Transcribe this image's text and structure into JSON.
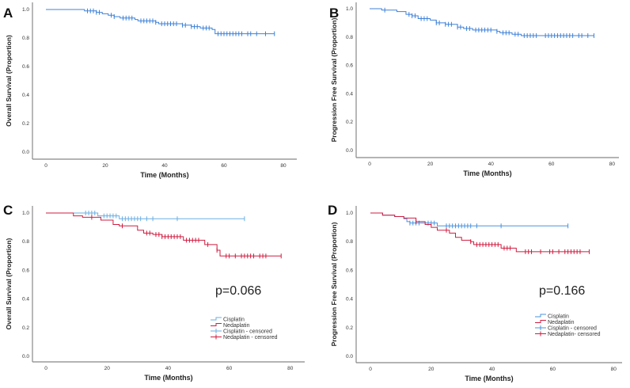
{
  "chart_data": [
    {
      "type": "line",
      "panel_label": "A",
      "xlabel": "Time (Months)",
      "ylabel": "Overall Survival (Proportion)",
      "xlim": [
        0,
        80
      ],
      "ylim": [
        0,
        1
      ],
      "xticks": [
        "0",
        "20",
        "40",
        "60",
        "80"
      ],
      "yticks": [
        "0.0",
        "0.2",
        "0.4",
        "0.6",
        "0.8",
        "1.0"
      ],
      "grid": false,
      "series": [
        {
          "color": "#3f82d8",
          "steps": [
            [
              0,
              1.0
            ],
            [
              13,
              0.99
            ],
            [
              17,
              0.98
            ],
            [
              19,
              0.97
            ],
            [
              21,
              0.96
            ],
            [
              23,
              0.95
            ],
            [
              25,
              0.94
            ],
            [
              30,
              0.93
            ],
            [
              31,
              0.92
            ],
            [
              37,
              0.91
            ],
            [
              38,
              0.9
            ],
            [
              46,
              0.89
            ],
            [
              49,
              0.88
            ],
            [
              52,
              0.87
            ],
            [
              56,
              0.86
            ],
            [
              57,
              0.83
            ],
            [
              77,
              0.83
            ]
          ],
          "censored": [
            14,
            15,
            16,
            17,
            18,
            22,
            23,
            26,
            27,
            28,
            29,
            32,
            33,
            34,
            35,
            36,
            37,
            39,
            40,
            41,
            42,
            43,
            44,
            46,
            47,
            49,
            50,
            51,
            53,
            54,
            55,
            58,
            59,
            60,
            61,
            62,
            63,
            64,
            65,
            66,
            68,
            69,
            71,
            74,
            77
          ]
        }
      ]
    },
    {
      "type": "line",
      "panel_label": "B",
      "xlabel": "Time (Months)",
      "ylabel": "Progression Free Survival (Proportion)",
      "xlim": [
        0,
        80
      ],
      "ylim": [
        0,
        1
      ],
      "xticks": [
        "0",
        "20",
        "40",
        "60",
        "80"
      ],
      "yticks": [
        "0.0",
        "0.2",
        "0.4",
        "0.6",
        "0.8",
        "1.0"
      ],
      "grid": false,
      "series": [
        {
          "color": "#3f82d8",
          "steps": [
            [
              0,
              1.0
            ],
            [
              4,
              0.99
            ],
            [
              9,
              0.98
            ],
            [
              12,
              0.96
            ],
            [
              14,
              0.95
            ],
            [
              16,
              0.93
            ],
            [
              20,
              0.92
            ],
            [
              22,
              0.9
            ],
            [
              25,
              0.89
            ],
            [
              29,
              0.87
            ],
            [
              31,
              0.86
            ],
            [
              34,
              0.85
            ],
            [
              42,
              0.84
            ],
            [
              43,
              0.83
            ],
            [
              47,
              0.82
            ],
            [
              50,
              0.81
            ],
            [
              74,
              0.81
            ]
          ],
          "censored": [
            5,
            13,
            14,
            15,
            17,
            18,
            19,
            22,
            23,
            25,
            26,
            27,
            29,
            30,
            32,
            33,
            35,
            36,
            37,
            38,
            39,
            40,
            42,
            44,
            45,
            46,
            48,
            49,
            51,
            52,
            53,
            54,
            55,
            58,
            59,
            60,
            61,
            62,
            63,
            64,
            65,
            66,
            67,
            69,
            70,
            72,
            74
          ]
        }
      ]
    },
    {
      "type": "line",
      "panel_label": "C",
      "xlabel": "Time (Months)",
      "ylabel": "Overall Survival (Proportion)",
      "xlim": [
        0,
        80
      ],
      "ylim": [
        0,
        1
      ],
      "xticks": [
        "0",
        "20",
        "40",
        "60",
        "80"
      ],
      "yticks": [
        "0.0",
        "0.2",
        "0.4",
        "0.6",
        "0.8",
        "1.0"
      ],
      "grid": false,
      "annotation": "p=0.066",
      "legend_position": "bottom-right",
      "legend": [
        "Cisplatin",
        "Nedaplatin",
        "Cisplatin - censored",
        "Nedaplatin - censored"
      ],
      "series": [
        {
          "name": "Cisplatin",
          "color": "#6aaee3",
          "steps": [
            [
              0,
              1.0
            ],
            [
              17,
              0.98
            ],
            [
              24,
              0.96
            ],
            [
              65,
              0.96
            ]
          ],
          "censored": [
            13,
            14,
            15,
            16,
            19,
            20,
            21,
            22,
            23,
            25,
            26,
            27,
            28,
            29,
            30,
            31,
            33,
            35,
            43,
            65
          ]
        },
        {
          "name": "Nedaplatin",
          "color": "#cf1d40",
          "steps": [
            [
              0,
              1.0
            ],
            [
              9,
              0.98
            ],
            [
              12,
              0.97
            ],
            [
              18,
              0.95
            ],
            [
              22,
              0.92
            ],
            [
              24,
              0.91
            ],
            [
              30,
              0.88
            ],
            [
              32,
              0.86
            ],
            [
              35,
              0.85
            ],
            [
              38,
              0.835
            ],
            [
              45,
              0.81
            ],
            [
              52,
              0.78
            ],
            [
              56,
              0.74
            ],
            [
              57,
              0.7
            ],
            [
              77,
              0.7
            ]
          ],
          "censored": [
            15,
            25,
            33,
            34,
            36,
            37,
            38,
            39,
            40,
            41,
            42,
            43,
            44,
            46,
            47,
            48,
            49,
            50,
            53,
            56,
            59,
            60,
            62,
            64,
            65,
            66,
            67,
            68,
            70,
            71,
            72,
            77
          ]
        }
      ]
    },
    {
      "type": "line",
      "panel_label": "D",
      "xlabel": "Time (Months)",
      "ylabel": "Progression Free Survival (Proportion)",
      "xlim": [
        0,
        80
      ],
      "ylim": [
        0,
        1
      ],
      "xticks": [
        "0",
        "20",
        "40",
        "60",
        "80"
      ],
      "yticks": [
        "0.0",
        "0.2",
        "0.4",
        "0.6",
        "0.8",
        "1.0"
      ],
      "grid": false,
      "annotation": "p=0.166",
      "legend_position": "bottom-right",
      "legend": [
        "Cisplatin",
        "Nedaplatin",
        "Cisplatin - censored",
        "Nedaplatin- censored"
      ],
      "series": [
        {
          "name": "Cisplatin",
          "color": "#4a93de",
          "steps": [
            [
              0,
              1.0
            ],
            [
              4,
              0.985
            ],
            [
              8,
              0.975
            ],
            [
              11,
              0.96
            ],
            [
              12,
              0.94
            ],
            [
              13,
              0.93
            ],
            [
              22,
              0.91
            ],
            [
              65,
              0.91
            ]
          ],
          "censored": [
            13,
            14,
            15,
            16,
            19,
            20,
            21,
            25,
            26,
            27,
            28,
            29,
            30,
            31,
            32,
            33,
            35,
            43,
            65
          ]
        },
        {
          "name": "Nedaplatin",
          "color": "#cf1d40",
          "steps": [
            [
              0,
              1.0
            ],
            [
              4,
              0.985
            ],
            [
              8,
              0.975
            ],
            [
              11,
              0.965
            ],
            [
              15,
              0.94
            ],
            [
              18,
              0.92
            ],
            [
              20,
              0.9
            ],
            [
              22,
              0.88
            ],
            [
              26,
              0.86
            ],
            [
              28,
              0.83
            ],
            [
              30,
              0.81
            ],
            [
              33,
              0.8
            ],
            [
              34,
              0.78
            ],
            [
              43,
              0.755
            ],
            [
              48,
              0.73
            ],
            [
              72,
              0.73
            ]
          ],
          "censored": [
            15,
            25,
            33,
            35,
            36,
            37,
            38,
            39,
            40,
            41,
            42,
            44,
            45,
            46,
            51,
            52,
            53,
            56,
            59,
            60,
            62,
            64,
            65,
            66,
            67,
            68,
            69,
            72
          ]
        }
      ]
    }
  ]
}
